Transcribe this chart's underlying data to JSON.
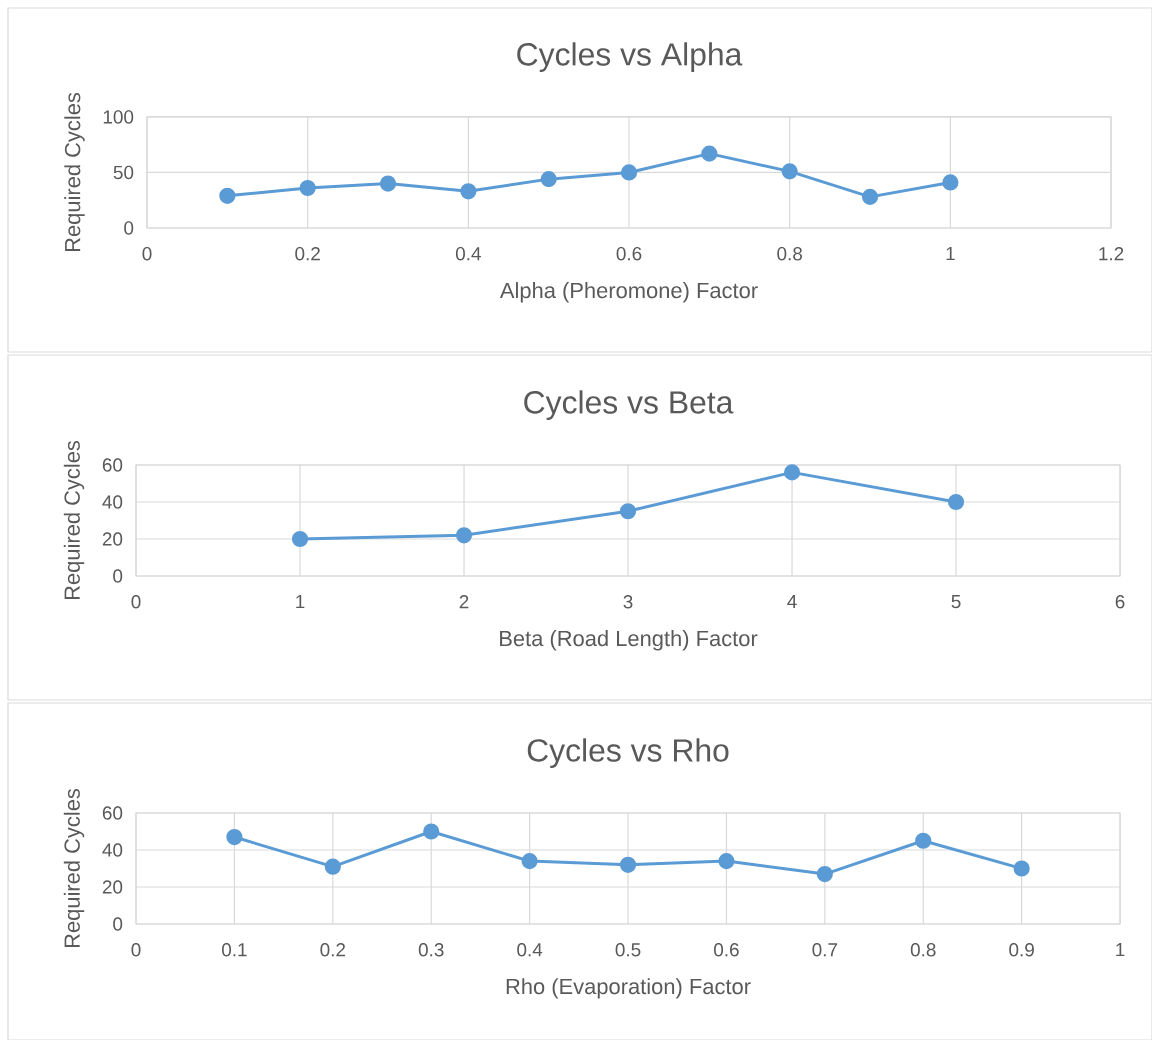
{
  "chart_data": [
    {
      "type": "line",
      "title": "Cycles vs Alpha",
      "xlabel": "Alpha (Pheromone) Factor",
      "ylabel": "Required Cycles",
      "x": [
        0.1,
        0.2,
        0.3,
        0.4,
        0.5,
        0.6,
        0.7,
        0.8,
        0.9,
        1
      ],
      "values": [
        29,
        36,
        40,
        33,
        44,
        50,
        67,
        51,
        28,
        41
      ],
      "color": "#5b9bd5",
      "xlim": [
        0,
        1.2
      ],
      "xticks": [
        0,
        0.2,
        0.4,
        0.6,
        0.8,
        1,
        1.2
      ],
      "ylim": [
        0,
        100
      ],
      "yticks": [
        0,
        50,
        100
      ],
      "grid": true,
      "marker": "circle"
    },
    {
      "type": "line",
      "title": "Cycles vs Beta",
      "xlabel": "Beta (Road Length) Factor",
      "ylabel": "Required Cycles",
      "x": [
        1,
        2,
        3,
        4,
        5
      ],
      "values": [
        20,
        22,
        35,
        56,
        40
      ],
      "color": "#5b9bd5",
      "xlim": [
        0,
        6
      ],
      "xticks": [
        0,
        1,
        2,
        3,
        4,
        5,
        6
      ],
      "ylim": [
        0,
        60
      ],
      "yticks": [
        0,
        20,
        40,
        60
      ],
      "grid": true,
      "marker": "circle"
    },
    {
      "type": "line",
      "title": "Cycles vs Rho",
      "xlabel": "Rho (Evaporation) Factor",
      "ylabel": "Required Cycles",
      "x": [
        0.1,
        0.2,
        0.3,
        0.4,
        0.5,
        0.6,
        0.7,
        0.8,
        0.9
      ],
      "values": [
        47,
        31,
        50,
        34,
        32,
        34,
        27,
        45,
        30
      ],
      "color": "#5b9bd5",
      "xlim": [
        0,
        1
      ],
      "xticks": [
        0,
        0.1,
        0.2,
        0.3,
        0.4,
        0.5,
        0.6,
        0.7,
        0.8,
        0.9,
        1
      ],
      "ylim": [
        0,
        60
      ],
      "yticks": [
        0,
        20,
        40,
        60
      ],
      "grid": true,
      "marker": "circle"
    }
  ]
}
